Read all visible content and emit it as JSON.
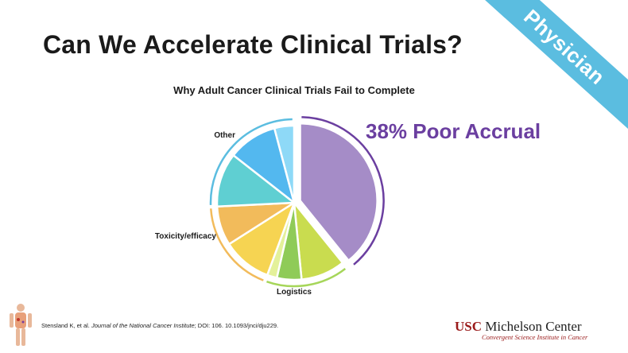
{
  "slide": {
    "title": "Can We Accelerate Clinical Trials?",
    "ribbon_text": "Physician",
    "callout": "38% Poor Accrual",
    "citation_authors": "Stensland K, et al. ",
    "citation_journal": "Journal of the National Cancer Institute",
    "citation_doi": "; DOI: 106. 10.1093/jnci/dju229.",
    "logo_usc": "USC",
    "logo_name": " Michelson Center",
    "logo_sub": "Convergent Science Institute in Cancer"
  },
  "colors": {
    "ribbon": "#5bbde0",
    "callout": "#6b3fa0",
    "purple": "#a58cc7",
    "green": "#c9dc4f",
    "orange": "#f2bb5b",
    "teal": "#5fcfd2",
    "blue": "#53b8ef"
  },
  "chart_data": {
    "type": "pie",
    "title": "Why Adult Cancer Clinical Trials Fail to Complete",
    "slices": [
      {
        "value": 38,
        "color": "#a58cc7",
        "group": "Poor accrual"
      },
      {
        "value": 9,
        "color": "#c9dc4f",
        "group": "Logistics"
      },
      {
        "value": 5,
        "color": "#8fcb58",
        "group": "Logistics"
      },
      {
        "value": 2,
        "color": "#e4f19a",
        "group": "Logistics"
      },
      {
        "value": 10,
        "color": "#f6d452",
        "group": "Toxicity/efficacy"
      },
      {
        "value": 8,
        "color": "#f2bb5b",
        "group": "Toxicity/efficacy"
      },
      {
        "value": 11,
        "color": "#5fcfd2",
        "group": "Other"
      },
      {
        "value": 10,
        "color": "#53b8ef",
        "group": "Other"
      },
      {
        "value": 4,
        "color": "#8ed9f7",
        "group": "Other"
      }
    ],
    "groups": [
      {
        "label": "Logistics",
        "color": "#a6d65a"
      },
      {
        "label": "Toxicity/efficacy",
        "color": "#f2bb5b"
      },
      {
        "label": "Other",
        "color": "#5bbde0"
      }
    ],
    "poor_accrual_ring_color": "#6b3fa0",
    "legend": "none"
  }
}
